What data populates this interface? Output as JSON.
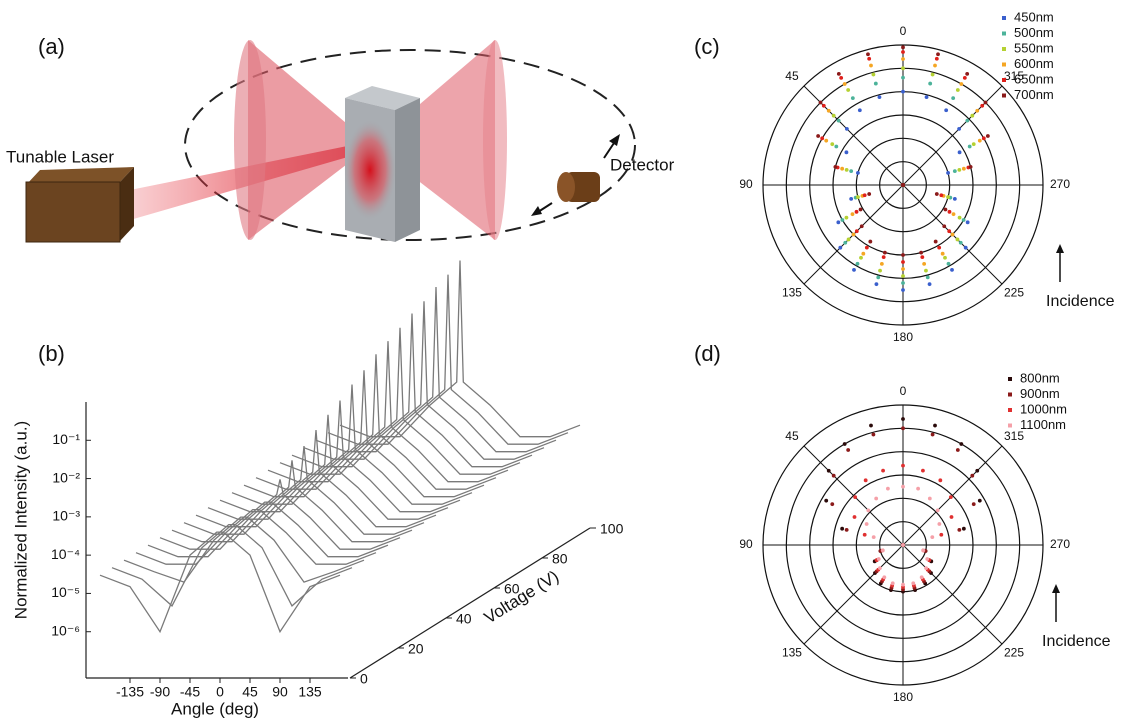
{
  "diagram": {
    "panel_label": "(a)",
    "laser_label": "Tunable Laser",
    "detector_label": "Detector"
  },
  "chart_data": [
    {
      "type": "waterfall",
      "panel_label": "(b)",
      "xlabel": "Angle (deg)",
      "ylabel": "Normalized Intensity (a.u.)",
      "zlabel": "Voltage (V)",
      "x": [
        -180,
        -135,
        -90,
        -45,
        -5,
        0,
        5,
        45,
        90,
        135,
        180
      ],
      "xlim": [
        -180,
        180
      ],
      "xticks": [
        -135,
        -90,
        -45,
        0,
        45,
        90,
        135
      ],
      "yscale": "log",
      "ylim": [
        1e-07,
        1
      ],
      "yticks": [
        {
          "value": 1e-06,
          "label": "10⁻⁶"
        },
        {
          "value": 1e-05,
          "label": "10⁻⁵"
        },
        {
          "value": 0.0001,
          "label": "10⁻⁴"
        },
        {
          "value": 0.001,
          "label": "10⁻³"
        },
        {
          "value": 0.01,
          "label": "10⁻²"
        },
        {
          "value": 0.1,
          "label": "10⁻¹"
        }
      ],
      "zlim": [
        0,
        100
      ],
      "zticks": [
        0,
        20,
        40,
        60,
        80,
        100
      ],
      "color": "#7a7a7a",
      "traces": [
        {
          "z": 0,
          "values": [
            3e-05,
            1.5e-05,
            1e-06,
            0.0001,
            0.0004,
            0.0004,
            0.0004,
            0.0001,
            1e-06,
            1.5e-05,
            3e-05
          ]
        },
        {
          "z": 5,
          "values": [
            3e-05,
            1.5e-05,
            3e-06,
            0.0001,
            0.0004,
            0.0004,
            0.0004,
            0.0001,
            3e-06,
            1.5e-05,
            3e-05
          ]
        },
        {
          "z": 10,
          "values": [
            3e-05,
            1.5e-05,
            8e-06,
            0.0001,
            0.0004,
            0.0004,
            0.0004,
            0.0001,
            8e-06,
            1.5e-05,
            3e-05
          ]
        },
        {
          "z": 15,
          "values": [
            3e-05,
            1.5e-05,
            1.5e-05,
            0.0001,
            0.0004,
            0.0004,
            0.0004,
            0.0001,
            1.5e-05,
            1.5e-05,
            3e-05
          ]
        },
        {
          "z": 20,
          "values": [
            3e-05,
            1.5e-05,
            1.5e-05,
            0.0001,
            0.0004,
            0.0004,
            0.0004,
            0.0001,
            1.5e-05,
            1.5e-05,
            3e-05
          ]
        },
        {
          "z": 25,
          "values": [
            3e-05,
            1.5e-05,
            1.5e-05,
            0.0001,
            0.0004,
            0.001,
            0.0004,
            0.0001,
            1.5e-05,
            1.5e-05,
            3e-05
          ]
        },
        {
          "z": 30,
          "values": [
            3e-05,
            1.5e-05,
            1.5e-05,
            0.0001,
            0.0004,
            0.002,
            0.0004,
            0.0001,
            1.5e-05,
            1.5e-05,
            3e-05
          ]
        },
        {
          "z": 35,
          "values": [
            3e-05,
            1.5e-05,
            1.5e-05,
            0.0001,
            0.0004,
            0.003,
            0.0004,
            0.0001,
            1.5e-05,
            1.5e-05,
            3e-05
          ]
        },
        {
          "z": 40,
          "values": [
            3e-05,
            1.5e-05,
            1.5e-05,
            0.0001,
            0.0004,
            0.005,
            0.0004,
            0.0001,
            1.5e-05,
            1.5e-05,
            3e-05
          ]
        },
        {
          "z": 45,
          "values": [
            3e-05,
            1.5e-05,
            1.5e-05,
            0.0001,
            0.0004,
            0.008,
            0.0004,
            0.0001,
            1.5e-05,
            1.5e-05,
            3e-05
          ]
        },
        {
          "z": 50,
          "values": [
            3e-05,
            1.5e-05,
            1.5e-05,
            0.0001,
            0.0004,
            0.012,
            0.0004,
            0.0001,
            1.5e-05,
            1.5e-05,
            3e-05
          ]
        },
        {
          "z": 55,
          "values": [
            3e-05,
            1.5e-05,
            1.5e-05,
            0.0001,
            0.0004,
            0.02,
            0.0004,
            0.0001,
            1.5e-05,
            1.5e-05,
            3e-05
          ]
        },
        {
          "z": 60,
          "values": [
            3e-05,
            1.5e-05,
            1.5e-05,
            0.0001,
            0.0004,
            0.03,
            0.0004,
            0.0001,
            1.5e-05,
            1.5e-05,
            3e-05
          ]
        },
        {
          "z": 65,
          "values": [
            3e-05,
            1.5e-05,
            1.5e-05,
            0.0001,
            0.0004,
            0.05,
            0.0004,
            0.0001,
            1.5e-05,
            1.5e-05,
            3e-05
          ]
        },
        {
          "z": 70,
          "values": [
            3e-05,
            1.5e-05,
            1.5e-05,
            0.0001,
            0.0004,
            0.07,
            0.0004,
            0.0001,
            1.5e-05,
            1.5e-05,
            3e-05
          ]
        },
        {
          "z": 75,
          "values": [
            3e-05,
            1.5e-05,
            1.5e-05,
            0.0001,
            0.0004,
            0.1,
            0.0004,
            0.0001,
            1.5e-05,
            1.5e-05,
            3e-05
          ]
        },
        {
          "z": 80,
          "values": [
            3e-05,
            1.5e-05,
            1.5e-05,
            0.0001,
            0.0004,
            0.15,
            0.0004,
            0.0001,
            1.5e-05,
            1.5e-05,
            3e-05
          ]
        },
        {
          "z": 85,
          "values": [
            3e-05,
            1.5e-05,
            1.5e-05,
            0.0001,
            0.0004,
            0.2,
            0.0004,
            0.0001,
            1.5e-05,
            1.5e-05,
            3e-05
          ]
        },
        {
          "z": 90,
          "values": [
            3e-05,
            1.5e-05,
            1.5e-05,
            0.0001,
            0.0004,
            0.3,
            0.0004,
            0.0001,
            1.5e-05,
            1.5e-05,
            3e-05
          ]
        },
        {
          "z": 95,
          "values": [
            3e-05,
            1.5e-05,
            1.5e-05,
            0.0001,
            0.0004,
            0.4,
            0.0004,
            0.0001,
            1.5e-05,
            1.5e-05,
            3e-05
          ]
        },
        {
          "z": 100,
          "values": [
            3e-05,
            1.5e-05,
            1.5e-05,
            0.0001,
            0.0004,
            0.6,
            0.0004,
            0.0001,
            1.5e-05,
            1.5e-05,
            3e-05
          ]
        }
      ]
    },
    {
      "type": "polar",
      "panel_label": "(c)",
      "annotation": "Incidence",
      "theta": [
        0,
        15,
        30,
        45,
        60,
        75,
        90,
        105,
        120,
        135,
        150,
        165,
        180,
        195,
        210,
        225,
        240,
        255,
        270,
        285,
        300,
        315,
        330,
        345
      ],
      "thetaticks": [
        0,
        45,
        90,
        135,
        180,
        225,
        270,
        315
      ],
      "rlim": [
        0,
        6
      ],
      "rticks": [
        1,
        2,
        3,
        4,
        5,
        6
      ],
      "series": [
        {
          "name": "450nm",
          "color": "#3a5fcd",
          "values": [
            4.0,
            3.9,
            3.7,
            3.4,
            2.8,
            2.0,
            0,
            2.3,
            3.2,
            3.8,
            4.2,
            4.4,
            4.5,
            4.4,
            4.2,
            3.8,
            3.2,
            2.3,
            0,
            2.0,
            2.8,
            3.4,
            3.7,
            3.9
          ]
        },
        {
          "name": "500nm",
          "color": "#4cb39a",
          "values": [
            4.6,
            4.5,
            4.3,
            3.9,
            3.3,
            2.3,
            0,
            2.1,
            3.0,
            3.5,
            3.9,
            4.1,
            4.2,
            4.1,
            3.9,
            3.5,
            3.0,
            2.1,
            0,
            2.3,
            3.3,
            3.9,
            4.3,
            4.5
          ]
        },
        {
          "name": "550nm",
          "color": "#b5d132",
          "values": [
            5.0,
            4.9,
            4.7,
            4.2,
            3.5,
            2.5,
            0,
            2.0,
            2.8,
            3.3,
            3.6,
            3.8,
            3.9,
            3.8,
            3.6,
            3.3,
            2.8,
            2.0,
            0,
            2.5,
            3.5,
            4.2,
            4.7,
            4.9
          ]
        },
        {
          "name": "600nm",
          "color": "#f5a623",
          "values": [
            5.4,
            5.3,
            5.0,
            4.5,
            3.8,
            2.7,
            0,
            1.8,
            2.5,
            3.0,
            3.4,
            3.5,
            3.6,
            3.5,
            3.4,
            3.0,
            2.5,
            1.8,
            0,
            2.7,
            3.8,
            4.5,
            5.0,
            5.3
          ]
        },
        {
          "name": "650nm",
          "color": "#e0201b",
          "values": [
            5.7,
            5.6,
            5.3,
            4.8,
            4.0,
            2.9,
            0,
            1.7,
            2.3,
            2.8,
            3.1,
            3.2,
            3.3,
            3.2,
            3.1,
            2.8,
            2.3,
            1.7,
            0,
            2.9,
            4.0,
            4.8,
            5.3,
            5.6
          ]
        },
        {
          "name": "700nm",
          "color": "#8b1a1a",
          "values": [
            5.9,
            5.8,
            5.5,
            5.0,
            4.2,
            3.0,
            0,
            1.5,
            2.1,
            2.5,
            2.8,
            3.0,
            3.0,
            3.0,
            2.8,
            2.5,
            2.1,
            1.5,
            0,
            3.0,
            4.2,
            5.0,
            5.5,
            5.8
          ]
        }
      ]
    },
    {
      "type": "polar",
      "panel_label": "(d)",
      "annotation": "Incidence",
      "theta": [
        0,
        15,
        30,
        45,
        60,
        75,
        90,
        105,
        120,
        135,
        150,
        165,
        180,
        195,
        210,
        225,
        240,
        255,
        270,
        285,
        300,
        315,
        330,
        345
      ],
      "thetaticks": [
        0,
        45,
        90,
        135,
        180,
        225,
        270,
        315
      ],
      "rlim": [
        0,
        6
      ],
      "rticks": [
        1,
        2,
        3,
        4,
        5,
        6
      ],
      "series": [
        {
          "name": "800nm",
          "color": "#2a0a0a",
          "values": [
            5.4,
            5.3,
            5.0,
            4.5,
            3.8,
            2.7,
            0,
            1.0,
            1.4,
            1.7,
            1.9,
            2.0,
            2.0,
            2.0,
            1.9,
            1.7,
            1.4,
            1.0,
            0,
            2.7,
            3.8,
            4.5,
            5.0,
            5.3
          ]
        },
        {
          "name": "900nm",
          "color": "#8b1a1a",
          "values": [
            5.0,
            4.9,
            4.7,
            4.2,
            3.5,
            2.5,
            0,
            1.0,
            1.3,
            1.6,
            1.8,
            1.9,
            1.9,
            1.9,
            1.8,
            1.6,
            1.3,
            1.0,
            0,
            2.5,
            3.5,
            4.2,
            4.7,
            4.9
          ]
        },
        {
          "name": "1000nm",
          "color": "#e03030",
          "values": [
            3.4,
            3.3,
            3.2,
            2.9,
            2.4,
            1.7,
            0,
            0.9,
            1.3,
            1.5,
            1.7,
            1.8,
            1.8,
            1.8,
            1.7,
            1.5,
            1.3,
            0.9,
            0,
            1.7,
            2.4,
            2.9,
            3.2,
            3.3
          ]
        },
        {
          "name": "1100nm",
          "color": "#f5a0a8",
          "values": [
            2.5,
            2.5,
            2.3,
            2.1,
            1.8,
            1.3,
            0,
            0.9,
            1.2,
            1.4,
            1.6,
            1.7,
            1.7,
            1.7,
            1.6,
            1.4,
            1.2,
            0.9,
            0,
            1.3,
            1.8,
            2.1,
            2.3,
            2.5
          ]
        }
      ]
    }
  ]
}
